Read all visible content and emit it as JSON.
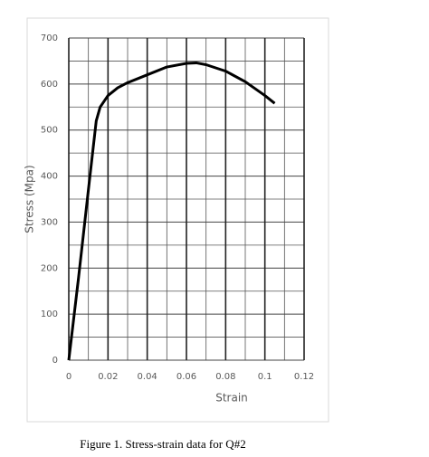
{
  "chart_data": {
    "type": "line",
    "x_label": "Strain",
    "y_label": "Stress (Mpa)",
    "x": [
      0,
      0.005,
      0.01,
      0.014,
      0.016,
      0.02,
      0.025,
      0.03,
      0.04,
      0.05,
      0.06,
      0.065,
      0.07,
      0.08,
      0.09,
      0.1,
      0.105
    ],
    "series": [
      {
        "color": "#000000",
        "values": [
          0,
          180,
          370,
          520,
          550,
          575,
          592,
          603,
          620,
          637,
          645,
          646,
          642,
          628,
          605,
          575,
          558
        ]
      }
    ],
    "xlim": [
      0,
      0.12
    ],
    "xticks": [
      0,
      0.02,
      0.04,
      0.06,
      0.08,
      0.1,
      0.12
    ],
    "ylim": [
      0,
      700
    ],
    "yticks": [
      0,
      100,
      200,
      300,
      400,
      500,
      600,
      700
    ],
    "grid": true,
    "minor_grid": true
  },
  "caption": "Figure 1. Stress-strain data for Q#2"
}
